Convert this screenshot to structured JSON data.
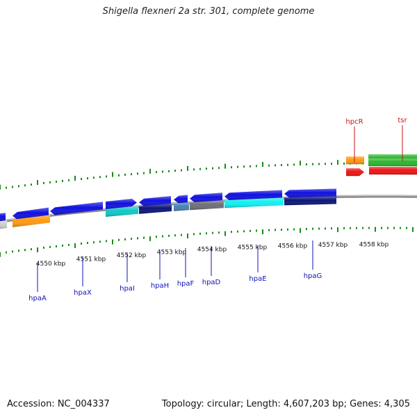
{
  "title": "Shigella flexneri 2a str. 301, complete genome",
  "footer": {
    "accession": "Accession: NC_004337",
    "summary": "Topology: circular; Length: 4,607,203 bp; Genes: 4,305"
  },
  "colors": {
    "blue": "#1010e0",
    "navy": "#0c1478",
    "cyan": "#10c8c8",
    "bright_cyan": "#12f0f0",
    "steel": "#4682b4",
    "gray": "#6e6e78",
    "orange": "#ff9a10",
    "red": "#ee1414",
    "green": "#2cb62c",
    "light_gray": "#cfcfcf",
    "tick_green": "#1a8a1a",
    "label_blue": "#1010b8",
    "label_red": "#c81414"
  },
  "scale": {
    "unit": "kbp",
    "ticks": [
      {
        "value": 4550,
        "label": "4550 kbp"
      },
      {
        "value": 4551,
        "label": "4551 kbp"
      },
      {
        "value": 4552,
        "label": "4552 kbp"
      },
      {
        "value": 4553,
        "label": "4553 kbp"
      },
      {
        "value": 4554,
        "label": "4554 kbp"
      },
      {
        "value": 4555,
        "label": "4555 kbp"
      },
      {
        "value": 4556,
        "label": "4556 kbp"
      },
      {
        "value": 4557,
        "label": "4557 kbp"
      },
      {
        "value": 4558,
        "label": "4558 kbp"
      }
    ]
  },
  "gene_labels": [
    {
      "name": "hpaA",
      "color": "label_blue"
    },
    {
      "name": "hpaX",
      "color": "label_blue"
    },
    {
      "name": "hpaI",
      "color": "label_blue"
    },
    {
      "name": "hpaH",
      "color": "label_blue"
    },
    {
      "name": "hpaF",
      "color": "label_blue"
    },
    {
      "name": "hpaD",
      "color": "label_blue"
    },
    {
      "name": "hpaE",
      "color": "label_blue"
    },
    {
      "name": "hpaG",
      "color": "label_blue"
    },
    {
      "name": "hpcR",
      "color": "label_red"
    },
    {
      "name": "tsr",
      "color": "label_red"
    }
  ]
}
